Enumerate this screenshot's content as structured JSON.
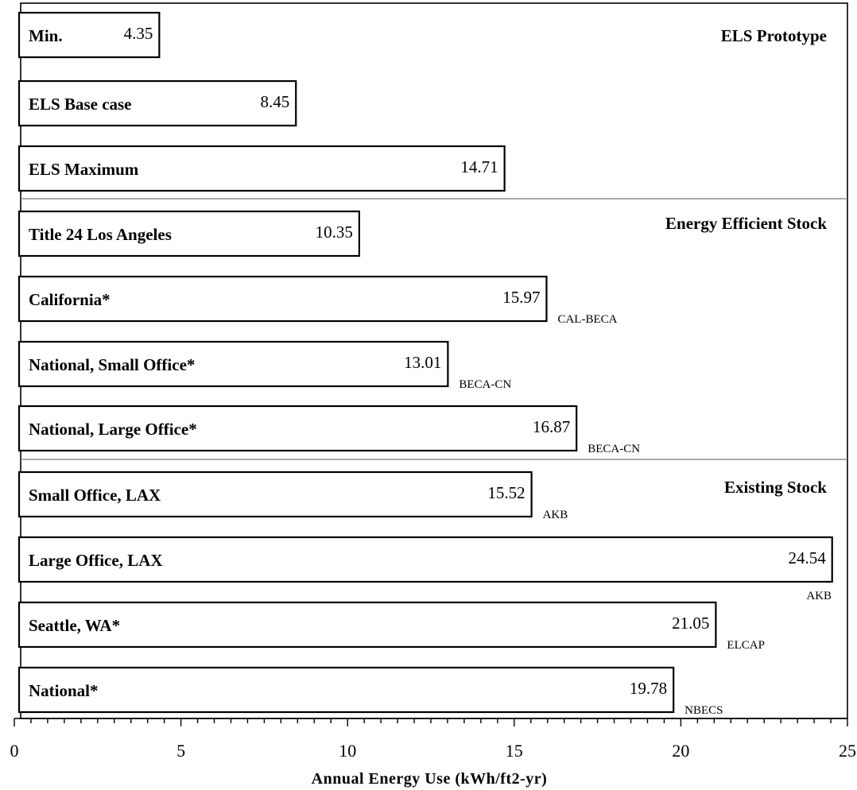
{
  "chart_data": {
    "type": "bar",
    "orientation": "horizontal",
    "xlabel": "Annual Energy Use (kWh/ft2-yr)",
    "xlim": [
      0,
      25
    ],
    "xticks": [
      0,
      5,
      10,
      15,
      20,
      25
    ],
    "grid": false,
    "groups": [
      {
        "name": "ELS Prototype",
        "bars": [
          {
            "label": "Min.",
            "value": 4.35,
            "value_text": "4.35",
            "source": ""
          },
          {
            "label": "ELS Base case",
            "value": 8.45,
            "value_text": "8.45",
            "source": ""
          },
          {
            "label": "ELS Maximum",
            "value": 14.71,
            "value_text": "14.71",
            "source": ""
          }
        ]
      },
      {
        "name": "Energy Efficient Stock",
        "bars": [
          {
            "label": "Title 24 Los Angeles",
            "value": 10.35,
            "value_text": "10.35",
            "source": ""
          },
          {
            "label": "California*",
            "value": 15.97,
            "value_text": "15.97",
            "source": "CAL-BECA"
          },
          {
            "label": "National, Small Office*",
            "value": 13.01,
            "value_text": "13.01",
            "source": "BECA-CN"
          },
          {
            "label": "National, Large Office*",
            "value": 16.87,
            "value_text": "16.87",
            "source": "BECA-CN"
          }
        ]
      },
      {
        "name": "Existing Stock",
        "bars": [
          {
            "label": "Small Office, LAX",
            "value": 15.52,
            "value_text": "15.52",
            "source": "AKB"
          },
          {
            "label": "Large Office, LAX",
            "value": 24.54,
            "value_text": "24.54",
            "source": "AKB"
          },
          {
            "label": "Seattle, WA*",
            "value": 21.05,
            "value_text": "21.05",
            "source": "ELCAP"
          },
          {
            "label": "National*",
            "value": 19.78,
            "value_text": "19.78",
            "source": "NBECS"
          }
        ]
      }
    ]
  }
}
